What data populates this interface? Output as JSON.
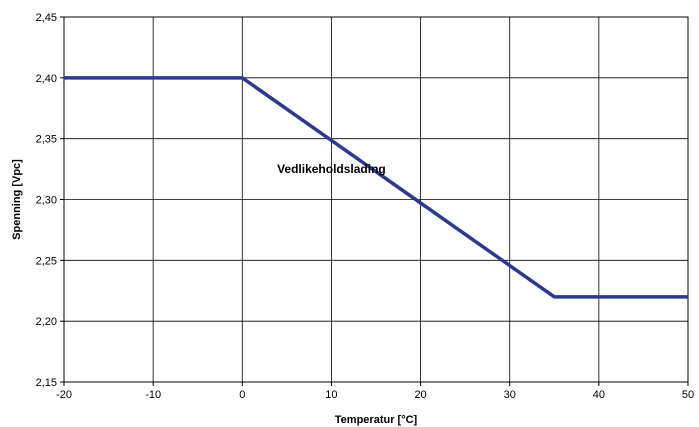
{
  "chart_data": {
    "type": "line",
    "title": "",
    "xlabel": "Temperatur [°C]",
    "ylabel": "Spenning [Vpc]",
    "xlim": [
      -20,
      50
    ],
    "ylim": [
      2.15,
      2.45
    ],
    "x_ticks": [
      -20,
      -10,
      0,
      10,
      20,
      30,
      40,
      50
    ],
    "x_tick_labels": [
      "-20",
      "-10",
      "0",
      "10",
      "20",
      "30",
      "40",
      "50"
    ],
    "y_ticks": [
      2.15,
      2.2,
      2.25,
      2.3,
      2.35,
      2.4,
      2.45
    ],
    "y_tick_labels": [
      "2,15",
      "2,20",
      "2,25",
      "2,30",
      "2,35",
      "2,40",
      "2,45"
    ],
    "grid": true,
    "legend": "none",
    "series": [
      {
        "color": "#2b3990",
        "points": [
          {
            "x": -20,
            "y": 2.4
          },
          {
            "x": 0,
            "y": 2.4
          },
          {
            "x": 35,
            "y": 2.22
          },
          {
            "x": 50,
            "y": 2.22
          }
        ]
      }
    ],
    "annotations": [
      {
        "text": "Vedlikeholdslading",
        "x": 10,
        "y": 2.325
      }
    ]
  }
}
